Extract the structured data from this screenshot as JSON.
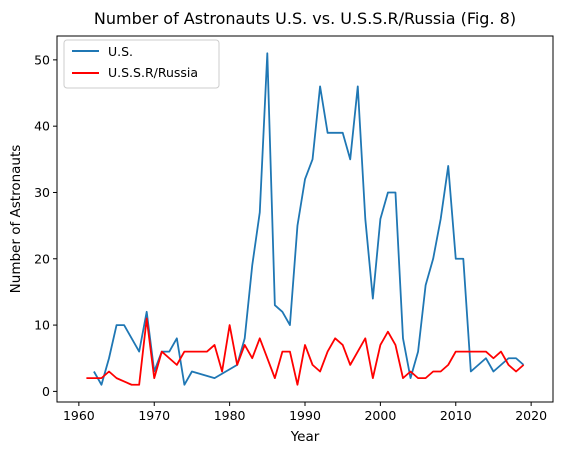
{
  "chart_data": {
    "type": "line",
    "title": "Number of Astronauts U.S. vs. U.S.S.R/Russia (Fig. 8)",
    "xlabel": "Year",
    "ylabel": "Number of Astronauts",
    "xlim": [
      1957.1,
      2022.9
    ],
    "ylim": [
      -1.6,
      53.6
    ],
    "xticks": [
      1960,
      1970,
      1980,
      1990,
      2000,
      2010,
      2020
    ],
    "yticks": [
      0,
      10,
      20,
      30,
      40,
      50
    ],
    "grid": false,
    "legend_position": "top-left",
    "x": [
      1961,
      1962,
      1963,
      1964,
      1965,
      1966,
      1967,
      1968,
      1969,
      1970,
      1971,
      1972,
      1973,
      1974,
      1975,
      1976,
      1977,
      1978,
      1979,
      1980,
      1981,
      1982,
      1983,
      1984,
      1985,
      1986,
      1987,
      1988,
      1989,
      1990,
      1991,
      1992,
      1993,
      1994,
      1995,
      1996,
      1997,
      1998,
      1999,
      2000,
      2001,
      2002,
      2003,
      2004,
      2005,
      2006,
      2007,
      2008,
      2009,
      2010,
      2011,
      2012,
      2013,
      2014,
      2015,
      2016,
      2017,
      2018,
      2019
    ],
    "series": [
      {
        "name": "U.S.",
        "color": "#1f77b4",
        "values": [
          null,
          3,
          1,
          5,
          10,
          10,
          8,
          6,
          12,
          3,
          6,
          6,
          8,
          1,
          3,
          null,
          null,
          2,
          null,
          null,
          4,
          8,
          19,
          27,
          51,
          13,
          12,
          10,
          25,
          32,
          35,
          46,
          39,
          39,
          39,
          35,
          46,
          26,
          14,
          26,
          30,
          30,
          8,
          2,
          6,
          16,
          20,
          26,
          34,
          20,
          20,
          3,
          4,
          5,
          3,
          4,
          5,
          5,
          4
        ]
      },
      {
        "name": "U.S.S.R/Russia",
        "color": "#ff0000",
        "values": [
          2,
          2,
          2,
          3,
          2,
          1.5,
          1,
          1,
          11,
          2,
          6,
          5,
          4,
          6,
          6,
          6,
          6,
          7,
          3,
          10,
          4,
          7,
          5,
          8,
          5,
          2,
          6,
          6,
          1,
          7,
          4,
          3,
          6,
          8,
          7,
          4,
          6,
          8,
          2,
          7,
          9,
          7,
          2,
          3,
          2,
          2,
          3,
          3,
          4,
          6,
          6,
          6,
          6,
          6,
          5,
          6,
          4,
          3,
          4
        ]
      }
    ]
  }
}
